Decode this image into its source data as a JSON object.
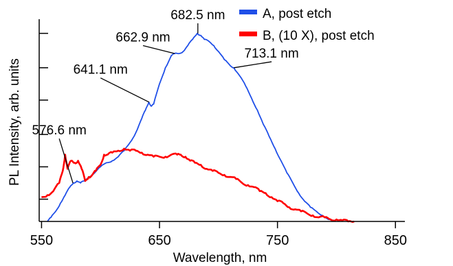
{
  "chart_data": {
    "type": "line",
    "xlabel": "Wavelength, nm",
    "ylabel": "PL Intensity, arb. units",
    "xlim": [
      548,
      858
    ],
    "ylim": [
      0,
      1
    ],
    "x_ticks": [
      {
        "value": 550,
        "label": "550"
      },
      {
        "value": 650,
        "label": "650"
      },
      {
        "value": 750,
        "label": "750"
      },
      {
        "value": 850,
        "label": "850"
      }
    ],
    "y_ticks_unlabeled": [
      0.11,
      0.27,
      0.43,
      0.6,
      0.76,
      0.93
    ],
    "legend_position": "top-right",
    "series": [
      {
        "name": "A, post etch",
        "color": "#1f4fe8",
        "points": [
          [
            555,
            0.0
          ],
          [
            558,
            0.02
          ],
          [
            562,
            0.05
          ],
          [
            566,
            0.09
          ],
          [
            570,
            0.13
          ],
          [
            574,
            0.17
          ],
          [
            577,
            0.19
          ],
          [
            580,
            0.2
          ],
          [
            583,
            0.19
          ],
          [
            586,
            0.2
          ],
          [
            590,
            0.22
          ],
          [
            595,
            0.24
          ],
          [
            600,
            0.27
          ],
          [
            605,
            0.29
          ],
          [
            610,
            0.3
          ],
          [
            615,
            0.32
          ],
          [
            620,
            0.35
          ],
          [
            625,
            0.39
          ],
          [
            630,
            0.44
          ],
          [
            635,
            0.51
          ],
          [
            638,
            0.55
          ],
          [
            641,
            0.59
          ],
          [
            643,
            0.57
          ],
          [
            645,
            0.58
          ],
          [
            650,
            0.68
          ],
          [
            655,
            0.76
          ],
          [
            660,
            0.82
          ],
          [
            663,
            0.83
          ],
          [
            666,
            0.83
          ],
          [
            670,
            0.84
          ],
          [
            674,
            0.87
          ],
          [
            678,
            0.9
          ],
          [
            682,
            0.93
          ],
          [
            685,
            0.92
          ],
          [
            688,
            0.9
          ],
          [
            692,
            0.89
          ],
          [
            696,
            0.87
          ],
          [
            700,
            0.84
          ],
          [
            705,
            0.8
          ],
          [
            710,
            0.77
          ],
          [
            713,
            0.76
          ],
          [
            718,
            0.72
          ],
          [
            723,
            0.67
          ],
          [
            728,
            0.61
          ],
          [
            733,
            0.55
          ],
          [
            738,
            0.48
          ],
          [
            743,
            0.42
          ],
          [
            748,
            0.36
          ],
          [
            753,
            0.3
          ],
          [
            758,
            0.24
          ],
          [
            763,
            0.19
          ],
          [
            768,
            0.14
          ],
          [
            773,
            0.1
          ],
          [
            778,
            0.07
          ],
          [
            783,
            0.05
          ],
          [
            788,
            0.03
          ],
          [
            793,
            0.01
          ],
          [
            797,
            0.0
          ]
        ]
      },
      {
        "name": "B, (10 X), post etch",
        "color": "#ff0000",
        "points": [
          [
            550,
            0.12
          ],
          [
            555,
            0.13
          ],
          [
            560,
            0.15
          ],
          [
            565,
            0.19
          ],
          [
            568,
            0.25
          ],
          [
            570,
            0.33
          ],
          [
            572,
            0.26
          ],
          [
            575,
            0.3
          ],
          [
            578,
            0.29
          ],
          [
            581,
            0.3
          ],
          [
            584,
            0.26
          ],
          [
            587,
            0.2
          ],
          [
            590,
            0.22
          ],
          [
            593,
            0.23
          ],
          [
            596,
            0.25
          ],
          [
            600,
            0.28
          ],
          [
            603,
            0.33
          ],
          [
            606,
            0.33
          ],
          [
            610,
            0.34
          ],
          [
            615,
            0.35
          ],
          [
            620,
            0.36
          ],
          [
            625,
            0.35
          ],
          [
            630,
            0.35
          ],
          [
            635,
            0.34
          ],
          [
            640,
            0.33
          ],
          [
            645,
            0.32
          ],
          [
            650,
            0.32
          ],
          [
            655,
            0.32
          ],
          [
            660,
            0.33
          ],
          [
            665,
            0.33
          ],
          [
            668,
            0.33
          ],
          [
            672,
            0.32
          ],
          [
            676,
            0.3
          ],
          [
            680,
            0.29
          ],
          [
            685,
            0.28
          ],
          [
            690,
            0.26
          ],
          [
            695,
            0.25
          ],
          [
            700,
            0.24
          ],
          [
            705,
            0.23
          ],
          [
            710,
            0.22
          ],
          [
            715,
            0.21
          ],
          [
            720,
            0.19
          ],
          [
            725,
            0.18
          ],
          [
            730,
            0.17
          ],
          [
            735,
            0.15
          ],
          [
            740,
            0.14
          ],
          [
            745,
            0.12
          ],
          [
            750,
            0.1
          ],
          [
            755,
            0.09
          ],
          [
            760,
            0.07
          ],
          [
            765,
            0.06
          ],
          [
            770,
            0.05
          ],
          [
            775,
            0.04
          ],
          [
            780,
            0.03
          ],
          [
            785,
            0.02
          ],
          [
            790,
            0.02
          ],
          [
            795,
            0.01
          ],
          [
            800,
            0.01
          ],
          [
            805,
            0.005
          ],
          [
            810,
            0.0
          ],
          [
            815,
            0.0
          ]
        ]
      }
    ],
    "annotations": [
      {
        "label": "576.6 nm",
        "x": 576.6,
        "y": 0.19,
        "text_x": 565,
        "text_y": 0.43
      },
      {
        "label": "641.1 nm",
        "x": 641.1,
        "y": 0.59,
        "text_x": 600,
        "text_y": 0.73
      },
      {
        "label": "662.9 nm",
        "x": 662.9,
        "y": 0.83,
        "text_x": 636,
        "text_y": 0.89
      },
      {
        "label": "682.5 nm",
        "x": 682.5,
        "y": 0.93,
        "text_x": 682.5,
        "text_y": 1.0
      },
      {
        "label": "713.1 nm",
        "x": 713.1,
        "y": 0.76,
        "text_x": 745,
        "text_y": 0.81
      }
    ]
  }
}
